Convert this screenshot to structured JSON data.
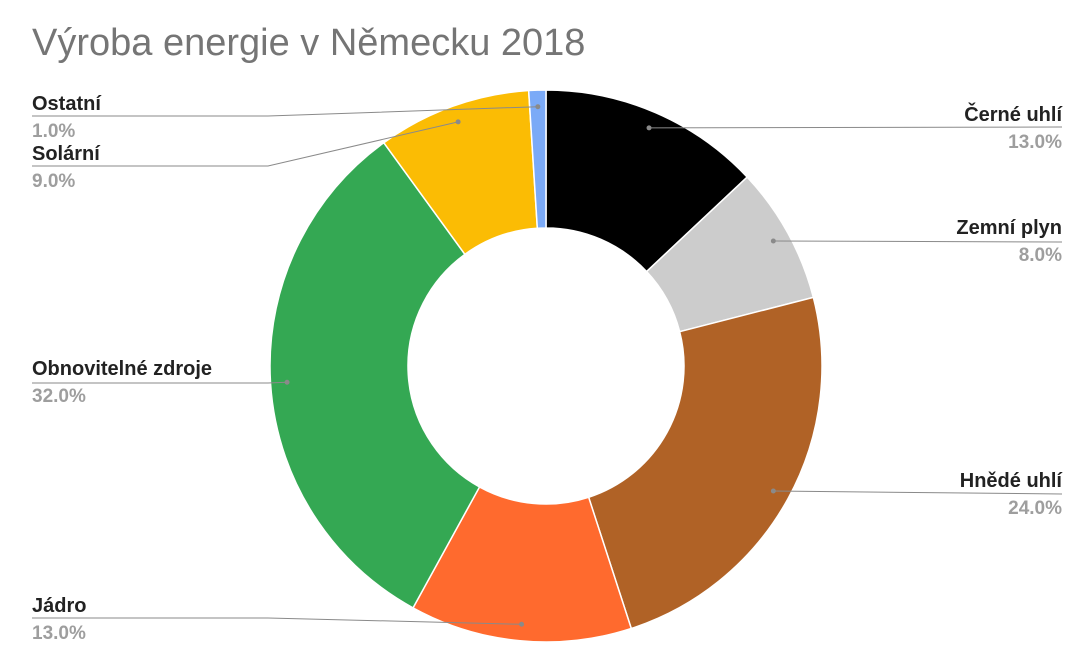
{
  "chart_data": {
    "type": "pie",
    "title": "Výroba energie v Německu 2018",
    "donut": true,
    "categories": [
      "Černé uhlí",
      "Zemní plyn",
      "Hnědé uhlí",
      "Jádro",
      "Obnovitelné zdroje",
      "Solární",
      "Ostatní"
    ],
    "values": [
      13.0,
      8.0,
      24.0,
      13.0,
      32.0,
      9.0,
      1.0
    ],
    "value_labels": [
      "13.0%",
      "8.0%",
      "24.0%",
      "13.0%",
      "32.0%",
      "9.0%",
      "1.0%"
    ],
    "colors": [
      "#000000",
      "#cccccc",
      "#b06226",
      "#ff6a2e",
      "#34a853",
      "#fbbc04",
      "#7baaf7"
    ],
    "legend": "none"
  }
}
